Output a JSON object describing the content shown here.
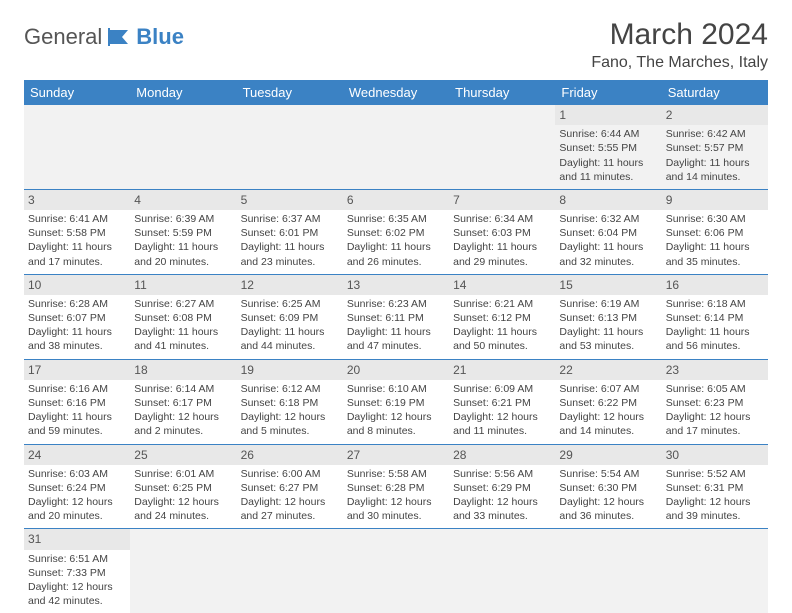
{
  "brand": {
    "part1": "General",
    "part2": "Blue"
  },
  "title": "March 2024",
  "location": "Fano, The Marches, Italy",
  "colors": {
    "header_bg": "#3b82c4",
    "header_text": "#ffffff",
    "daynum_bg": "#e8e8e8",
    "border": "#3b82c4",
    "text": "#444444"
  },
  "day_headers": [
    "Sunday",
    "Monday",
    "Tuesday",
    "Wednesday",
    "Thursday",
    "Friday",
    "Saturday"
  ],
  "weeks": [
    [
      null,
      null,
      null,
      null,
      null,
      {
        "n": "1",
        "sr": "Sunrise: 6:44 AM",
        "ss": "Sunset: 5:55 PM",
        "dl": "Daylight: 11 hours and 11 minutes."
      },
      {
        "n": "2",
        "sr": "Sunrise: 6:42 AM",
        "ss": "Sunset: 5:57 PM",
        "dl": "Daylight: 11 hours and 14 minutes."
      }
    ],
    [
      {
        "n": "3",
        "sr": "Sunrise: 6:41 AM",
        "ss": "Sunset: 5:58 PM",
        "dl": "Daylight: 11 hours and 17 minutes."
      },
      {
        "n": "4",
        "sr": "Sunrise: 6:39 AM",
        "ss": "Sunset: 5:59 PM",
        "dl": "Daylight: 11 hours and 20 minutes."
      },
      {
        "n": "5",
        "sr": "Sunrise: 6:37 AM",
        "ss": "Sunset: 6:01 PM",
        "dl": "Daylight: 11 hours and 23 minutes."
      },
      {
        "n": "6",
        "sr": "Sunrise: 6:35 AM",
        "ss": "Sunset: 6:02 PM",
        "dl": "Daylight: 11 hours and 26 minutes."
      },
      {
        "n": "7",
        "sr": "Sunrise: 6:34 AM",
        "ss": "Sunset: 6:03 PM",
        "dl": "Daylight: 11 hours and 29 minutes."
      },
      {
        "n": "8",
        "sr": "Sunrise: 6:32 AM",
        "ss": "Sunset: 6:04 PM",
        "dl": "Daylight: 11 hours and 32 minutes."
      },
      {
        "n": "9",
        "sr": "Sunrise: 6:30 AM",
        "ss": "Sunset: 6:06 PM",
        "dl": "Daylight: 11 hours and 35 minutes."
      }
    ],
    [
      {
        "n": "10",
        "sr": "Sunrise: 6:28 AM",
        "ss": "Sunset: 6:07 PM",
        "dl": "Daylight: 11 hours and 38 minutes."
      },
      {
        "n": "11",
        "sr": "Sunrise: 6:27 AM",
        "ss": "Sunset: 6:08 PM",
        "dl": "Daylight: 11 hours and 41 minutes."
      },
      {
        "n": "12",
        "sr": "Sunrise: 6:25 AM",
        "ss": "Sunset: 6:09 PM",
        "dl": "Daylight: 11 hours and 44 minutes."
      },
      {
        "n": "13",
        "sr": "Sunrise: 6:23 AM",
        "ss": "Sunset: 6:11 PM",
        "dl": "Daylight: 11 hours and 47 minutes."
      },
      {
        "n": "14",
        "sr": "Sunrise: 6:21 AM",
        "ss": "Sunset: 6:12 PM",
        "dl": "Daylight: 11 hours and 50 minutes."
      },
      {
        "n": "15",
        "sr": "Sunrise: 6:19 AM",
        "ss": "Sunset: 6:13 PM",
        "dl": "Daylight: 11 hours and 53 minutes."
      },
      {
        "n": "16",
        "sr": "Sunrise: 6:18 AM",
        "ss": "Sunset: 6:14 PM",
        "dl": "Daylight: 11 hours and 56 minutes."
      }
    ],
    [
      {
        "n": "17",
        "sr": "Sunrise: 6:16 AM",
        "ss": "Sunset: 6:16 PM",
        "dl": "Daylight: 11 hours and 59 minutes."
      },
      {
        "n": "18",
        "sr": "Sunrise: 6:14 AM",
        "ss": "Sunset: 6:17 PM",
        "dl": "Daylight: 12 hours and 2 minutes."
      },
      {
        "n": "19",
        "sr": "Sunrise: 6:12 AM",
        "ss": "Sunset: 6:18 PM",
        "dl": "Daylight: 12 hours and 5 minutes."
      },
      {
        "n": "20",
        "sr": "Sunrise: 6:10 AM",
        "ss": "Sunset: 6:19 PM",
        "dl": "Daylight: 12 hours and 8 minutes."
      },
      {
        "n": "21",
        "sr": "Sunrise: 6:09 AM",
        "ss": "Sunset: 6:21 PM",
        "dl": "Daylight: 12 hours and 11 minutes."
      },
      {
        "n": "22",
        "sr": "Sunrise: 6:07 AM",
        "ss": "Sunset: 6:22 PM",
        "dl": "Daylight: 12 hours and 14 minutes."
      },
      {
        "n": "23",
        "sr": "Sunrise: 6:05 AM",
        "ss": "Sunset: 6:23 PM",
        "dl": "Daylight: 12 hours and 17 minutes."
      }
    ],
    [
      {
        "n": "24",
        "sr": "Sunrise: 6:03 AM",
        "ss": "Sunset: 6:24 PM",
        "dl": "Daylight: 12 hours and 20 minutes."
      },
      {
        "n": "25",
        "sr": "Sunrise: 6:01 AM",
        "ss": "Sunset: 6:25 PM",
        "dl": "Daylight: 12 hours and 24 minutes."
      },
      {
        "n": "26",
        "sr": "Sunrise: 6:00 AM",
        "ss": "Sunset: 6:27 PM",
        "dl": "Daylight: 12 hours and 27 minutes."
      },
      {
        "n": "27",
        "sr": "Sunrise: 5:58 AM",
        "ss": "Sunset: 6:28 PM",
        "dl": "Daylight: 12 hours and 30 minutes."
      },
      {
        "n": "28",
        "sr": "Sunrise: 5:56 AM",
        "ss": "Sunset: 6:29 PM",
        "dl": "Daylight: 12 hours and 33 minutes."
      },
      {
        "n": "29",
        "sr": "Sunrise: 5:54 AM",
        "ss": "Sunset: 6:30 PM",
        "dl": "Daylight: 12 hours and 36 minutes."
      },
      {
        "n": "30",
        "sr": "Sunrise: 5:52 AM",
        "ss": "Sunset: 6:31 PM",
        "dl": "Daylight: 12 hours and 39 minutes."
      }
    ],
    [
      {
        "n": "31",
        "sr": "Sunrise: 6:51 AM",
        "ss": "Sunset: 7:33 PM",
        "dl": "Daylight: 12 hours and 42 minutes."
      },
      null,
      null,
      null,
      null,
      null,
      null
    ]
  ]
}
